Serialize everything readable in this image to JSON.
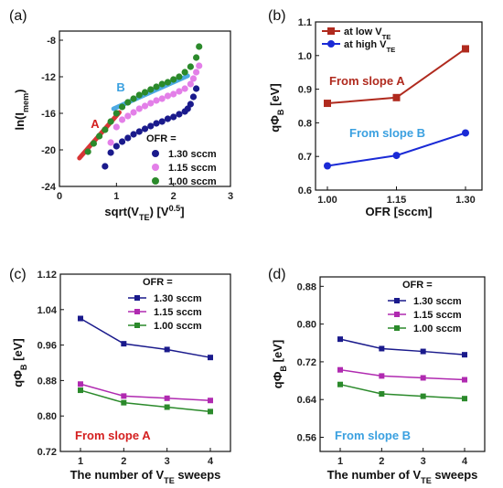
{
  "chart_data": [
    {
      "panel": "(a)",
      "type": "scatter",
      "xlabel": "sqrt(V_TE) [V^0.5]",
      "ylabel": "ln(I_mem)",
      "xlim": [
        0,
        3
      ],
      "ylim": [
        -24,
        -7
      ],
      "xticks": [
        "0",
        "1",
        "2",
        "3"
      ],
      "yticks": [
        "-8",
        "-12",
        "-16",
        "-20",
        "-24"
      ],
      "legend_title": "OFR =",
      "annotations": [
        {
          "text": "A",
          "color": "#d42020"
        },
        {
          "text": "B",
          "color": "#3aa0e0"
        }
      ],
      "series": [
        {
          "name": "1.30 sccm",
          "color": "#1a1a8c",
          "x": [
            0.8,
            0.9,
            1.0,
            1.1,
            1.2,
            1.3,
            1.4,
            1.5,
            1.6,
            1.7,
            1.8,
            1.9,
            2.0,
            2.1,
            2.2,
            2.25,
            2.3,
            2.35,
            2.4
          ],
          "y": [
            -21.8,
            -20.3,
            -19.6,
            -19.1,
            -18.7,
            -18.3,
            -18.0,
            -17.7,
            -17.4,
            -17.1,
            -16.9,
            -16.6,
            -16.4,
            -16.1,
            -15.8,
            -15.5,
            -15.0,
            -14.2,
            -13.3
          ]
        },
        {
          "name": "1.15 sccm",
          "color": "#e37fe8",
          "x": [
            0.9,
            1.0,
            1.1,
            1.2,
            1.3,
            1.4,
            1.5,
            1.6,
            1.7,
            1.8,
            1.9,
            2.0,
            2.1,
            2.2,
            2.3,
            2.35,
            2.4,
            2.45
          ],
          "y": [
            -19.2,
            -17.5,
            -16.7,
            -16.3,
            -15.9,
            -15.5,
            -15.2,
            -14.9,
            -14.6,
            -14.4,
            -14.1,
            -13.9,
            -13.6,
            -13.3,
            -12.8,
            -12.2,
            -11.5,
            -10.8
          ]
        },
        {
          "name": "1.00 sccm",
          "color": "#2b8a2b",
          "x": [
            0.5,
            0.6,
            0.7,
            0.8,
            0.9,
            1.0,
            1.1,
            1.2,
            1.3,
            1.4,
            1.5,
            1.6,
            1.7,
            1.8,
            1.9,
            2.0,
            2.1,
            2.2,
            2.3,
            2.4,
            2.45
          ],
          "y": [
            -20.2,
            -19.3,
            -18.5,
            -17.8,
            -16.9,
            -16.0,
            -15.3,
            -14.8,
            -14.4,
            -14.0,
            -13.7,
            -13.4,
            -13.1,
            -12.8,
            -12.6,
            -12.3,
            -12.0,
            -11.5,
            -10.9,
            -9.9,
            -8.7
          ]
        }
      ],
      "fit_lines": [
        {
          "label": "A",
          "color": "#d42020",
          "x": [
            0.35,
            1.05
          ],
          "y": [
            -20.9,
            -15.9
          ]
        },
        {
          "label": "B",
          "color": "#3aa0e0",
          "x": [
            0.95,
            2.25
          ],
          "y": [
            -15.5,
            -11.9
          ]
        }
      ]
    },
    {
      "panel": "(b)",
      "type": "line",
      "xlabel": "OFR [sccm]",
      "ylabel": "qΦB [eV]",
      "xticks": [
        "1.00",
        "1.15",
        "1.30"
      ],
      "yticks": [
        "0.6",
        "0.7",
        "0.8",
        "0.9",
        "1.0",
        "1.1"
      ],
      "ylim": [
        0.6,
        1.1
      ],
      "categories": [
        "1.00",
        "1.15",
        "1.30"
      ],
      "series": [
        {
          "name": "at low V_TE",
          "color": "#b02a1e",
          "marker": "square",
          "values": [
            0.858,
            0.875,
            1.02
          ]
        },
        {
          "name": "at high V_TE",
          "color": "#1a2ad6",
          "marker": "circle",
          "values": [
            0.672,
            0.703,
            0.77
          ]
        }
      ],
      "annotations": [
        {
          "text": "From slope A",
          "color": "#b02a1e"
        },
        {
          "text": "From slope B",
          "color": "#3aa0e0"
        }
      ]
    },
    {
      "panel": "(c)",
      "type": "line",
      "xlabel": "The number of V_TE sweeps",
      "ylabel": "qΦB [eV]",
      "categories": [
        "1",
        "2",
        "3",
        "4"
      ],
      "yticks": [
        "1.12",
        "1.04",
        "0.96",
        "0.88",
        "0.80",
        "0.72"
      ],
      "ylim": [
        0.72,
        1.12
      ],
      "legend_title": "OFR =",
      "series": [
        {
          "name": "1.30 sccm",
          "color": "#1a1a8c",
          "values": [
            1.02,
            0.963,
            0.95,
            0.932
          ]
        },
        {
          "name": "1.15 sccm",
          "color": "#b02ab0",
          "values": [
            0.872,
            0.845,
            0.84,
            0.835
          ]
        },
        {
          "name": "1.00 sccm",
          "color": "#2b8a2b",
          "values": [
            0.858,
            0.83,
            0.82,
            0.81
          ]
        }
      ],
      "annotation": {
        "text": "From slope A",
        "color": "#d42020"
      }
    },
    {
      "panel": "(d)",
      "type": "line",
      "xlabel": "The number of V_TE sweeps",
      "ylabel": "qΦB [eV]",
      "categories": [
        "1",
        "2",
        "3",
        "4"
      ],
      "yticks": [
        "0.88",
        "0.80",
        "0.72",
        "0.64",
        "0.56"
      ],
      "ylim": [
        0.53,
        0.9
      ],
      "legend_title": "OFR =",
      "series": [
        {
          "name": "1.30 sccm",
          "color": "#1a1a8c",
          "values": [
            0.768,
            0.748,
            0.742,
            0.735
          ]
        },
        {
          "name": "1.15 sccm",
          "color": "#b02ab0",
          "values": [
            0.703,
            0.69,
            0.686,
            0.682
          ]
        },
        {
          "name": "1.00 sccm",
          "color": "#2b8a2b",
          "values": [
            0.672,
            0.652,
            0.647,
            0.642
          ]
        }
      ],
      "annotation": {
        "text": "From slope B",
        "color": "#3aa0e0"
      }
    }
  ]
}
